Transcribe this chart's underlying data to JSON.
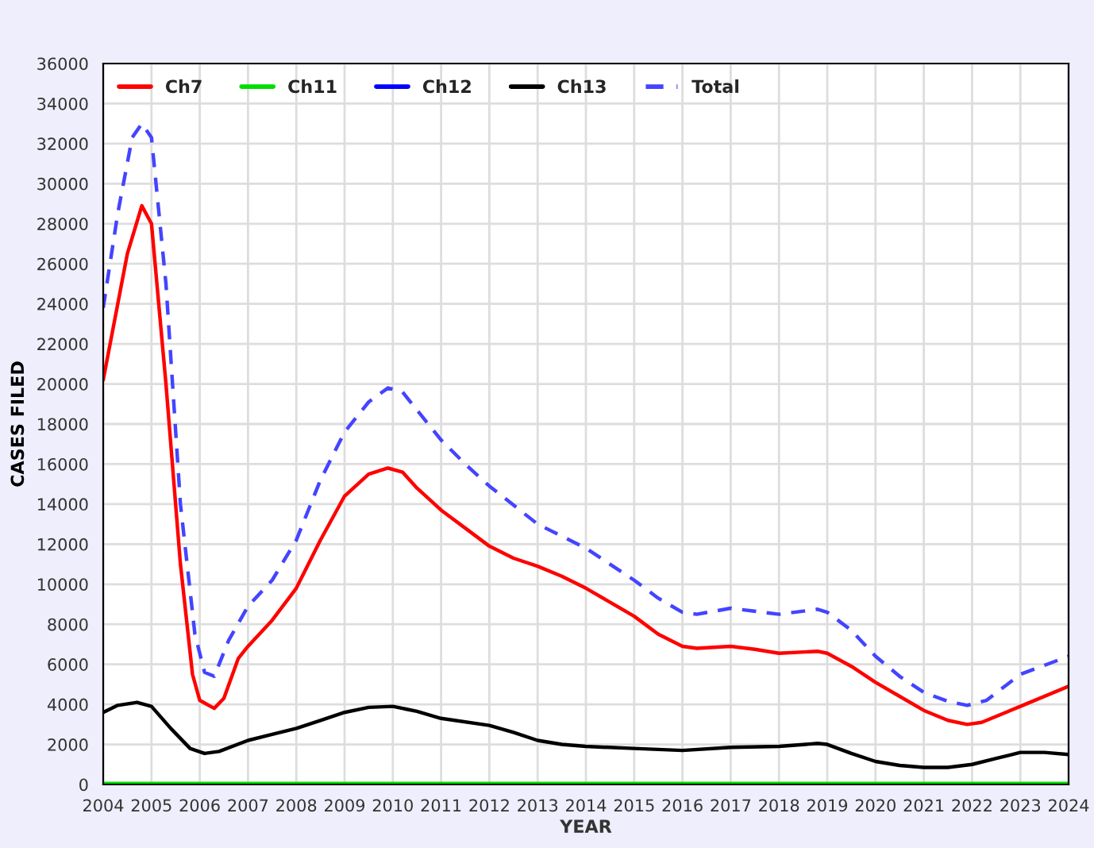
{
  "chart_data": {
    "type": "line",
    "xlabel": "YEAR",
    "ylabel": "CASES FILED",
    "xlim": [
      2004,
      2024
    ],
    "xticks": [
      2004,
      2005,
      2006,
      2007,
      2008,
      2009,
      2010,
      2011,
      2012,
      2013,
      2014,
      2015,
      2016,
      2017,
      2018,
      2019,
      2020,
      2021,
      2022,
      2023,
      2024
    ],
    "ylim": [
      0,
      36000
    ],
    "yticks": [
      0,
      2000,
      4000,
      6000,
      8000,
      10000,
      12000,
      14000,
      16000,
      18000,
      20000,
      22000,
      24000,
      26000,
      28000,
      30000,
      32000,
      34000,
      36000
    ],
    "grid": true,
    "legend": "top left",
    "series": [
      {
        "name": "Ch7",
        "color": "#ff0000",
        "line_style": "solid",
        "x": [
          2004,
          2004.5,
          2004.8,
          2005,
          2005.3,
          2005.6,
          2005.85,
          2006,
          2006.3,
          2006.5,
          2006.8,
          2007,
          2007.5,
          2008,
          2008.5,
          2009,
          2009.5,
          2009.9,
          2010.2,
          2010.5,
          2011,
          2011.5,
          2012,
          2012.5,
          2013,
          2013.5,
          2014,
          2015,
          2015.5,
          2016,
          2016.3,
          2017,
          2017.5,
          2018,
          2018.8,
          2019,
          2019.5,
          2020,
          2020.5,
          2021,
          2021.5,
          2021.9,
          2022.2,
          2023,
          2024
        ],
        "values": [
          20200,
          26500,
          28900,
          28000,
          20000,
          11000,
          5500,
          4200,
          3800,
          4300,
          6300,
          6900,
          8200,
          9800,
          12200,
          14400,
          15500,
          15800,
          15600,
          14800,
          13700,
          12800,
          11900,
          11300,
          10900,
          10400,
          9800,
          8400,
          7500,
          6900,
          6800,
          6900,
          6750,
          6550,
          6650,
          6550,
          5900,
          5100,
          4400,
          3700,
          3200,
          3000,
          3100,
          3900,
          4900
        ]
      },
      {
        "name": "Ch11",
        "color": "#00dd00",
        "line_style": "solid",
        "x": [
          2004,
          2024
        ],
        "values": [
          50,
          50
        ]
      },
      {
        "name": "Ch12",
        "color": "#0000ff",
        "line_style": "solid"
      },
      {
        "name": "Ch13",
        "color": "#000000",
        "line_style": "solid",
        "x": [
          2004,
          2004.3,
          2004.7,
          2005,
          2005.4,
          2005.8,
          2006.1,
          2006.4,
          2007,
          2007.5,
          2008,
          2008.5,
          2009,
          2009.5,
          2010,
          2010.5,
          2011,
          2012,
          2012.5,
          2013,
          2013.5,
          2014,
          2015,
          2016,
          2017,
          2018,
          2018.8,
          2019,
          2019.5,
          2020,
          2020.5,
          2021,
          2021.5,
          2022,
          2022.5,
          2023,
          2023.5,
          2024
        ],
        "values": [
          3600,
          3950,
          4100,
          3900,
          2800,
          1800,
          1550,
          1650,
          2200,
          2500,
          2800,
          3200,
          3600,
          3850,
          3900,
          3650,
          3300,
          2950,
          2600,
          2200,
          2000,
          1900,
          1800,
          1700,
          1850,
          1900,
          2050,
          2000,
          1550,
          1150,
          950,
          850,
          850,
          1000,
          1300,
          1600,
          1600,
          1500
        ]
      },
      {
        "name": "Total",
        "color": "#4444ff",
        "line_style": "dashed",
        "x": [
          2004,
          2004.3,
          2004.6,
          2004.8,
          2005,
          2005.3,
          2005.6,
          2005.9,
          2006.1,
          2006.3,
          2006.6,
          2007,
          2007.5,
          2008,
          2008.5,
          2009,
          2009.5,
          2009.9,
          2010.2,
          2010.5,
          2011,
          2011.5,
          2012,
          2013,
          2014,
          2015,
          2015.5,
          2016,
          2016.3,
          2017,
          2018,
          2018.8,
          2019,
          2019.5,
          2020,
          2020.5,
          2021,
          2021.5,
          2021.9,
          2022.3,
          2023,
          2024
        ],
        "values": [
          23800,
          28500,
          32300,
          33000,
          32300,
          25000,
          14000,
          7500,
          5600,
          5400,
          7200,
          8900,
          10200,
          12200,
          15200,
          17600,
          19100,
          19800,
          19600,
          18700,
          17200,
          16000,
          14900,
          13000,
          11800,
          10200,
          9300,
          8600,
          8500,
          8800,
          8500,
          8750,
          8600,
          7700,
          6400,
          5400,
          4600,
          4150,
          3950,
          4200,
          5500,
          6400
        ]
      }
    ]
  }
}
